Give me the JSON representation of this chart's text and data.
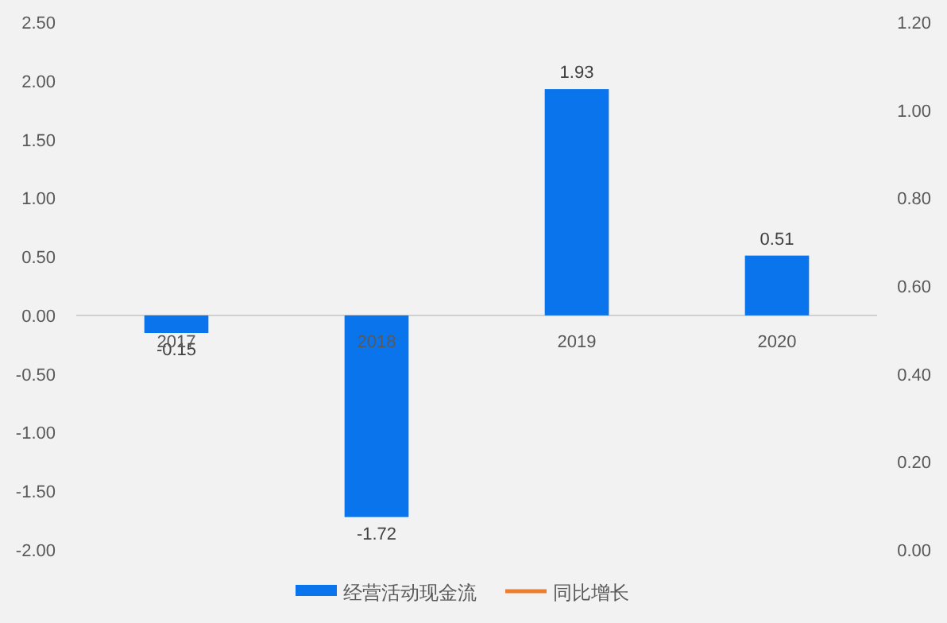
{
  "chart_data": {
    "type": "bar",
    "categories": [
      "2017",
      "2018",
      "2019",
      "2020"
    ],
    "series": [
      {
        "name": "经营活动现金流",
        "color": "#0a74ec",
        "values": [
          -0.15,
          -1.72,
          1.93,
          0.51
        ]
      },
      {
        "name": "同比增长",
        "type": "line",
        "color": "#ed7d31",
        "values": [
          null,
          null,
          null,
          null
        ]
      }
    ],
    "data_labels": true,
    "legend": "bottom",
    "ylim": [
      -2,
      2.5
    ],
    "yticks": [
      {
        "value": -2,
        "label": "-2.00"
      },
      {
        "value": -1.5,
        "label": "-1.50"
      },
      {
        "value": -1,
        "label": "-1.00"
      },
      {
        "value": -0.5,
        "label": "-0.50"
      },
      {
        "value": 0,
        "label": "0.00"
      },
      {
        "value": 0.5,
        "label": "0.50"
      },
      {
        "value": 1,
        "label": "1.00"
      },
      {
        "value": 1.5,
        "label": "1.50"
      },
      {
        "value": 2,
        "label": "2.00"
      },
      {
        "value": 2.5,
        "label": "2.50"
      }
    ],
    "y2lim": [
      0,
      1.2
    ],
    "y2ticks": [
      {
        "value": 0,
        "label": "0.00"
      },
      {
        "value": 0.2,
        "label": "0.20"
      },
      {
        "value": 0.4,
        "label": "0.40"
      },
      {
        "value": 0.6,
        "label": "0.60"
      },
      {
        "value": 0.8,
        "label": "0.80"
      },
      {
        "value": 1,
        "label": "1.00"
      },
      {
        "value": 1.2,
        "label": "1.20"
      }
    ]
  }
}
